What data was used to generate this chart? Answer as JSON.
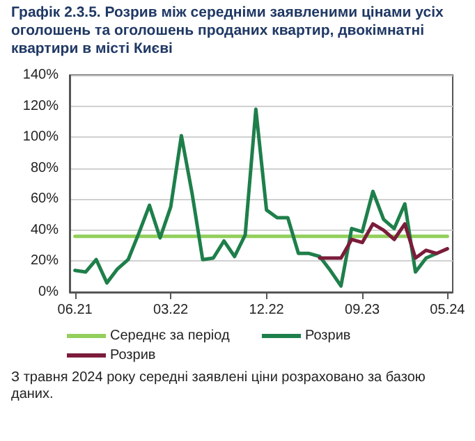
{
  "chart_data": {
    "type": "line",
    "title": "Графік 2.3.5. Розрив між середніми заявленими цінами усіх оголошень та оголошень проданих квартир, двокімнатні квартири в місті Києві",
    "categories": [
      "06.21",
      null,
      null,
      null,
      null,
      null,
      null,
      null,
      null,
      "03.22",
      null,
      null,
      null,
      null,
      null,
      null,
      null,
      null,
      "12.22",
      null,
      null,
      null,
      null,
      null,
      null,
      null,
      null,
      "09.23",
      null,
      null,
      null,
      null,
      null,
      null,
      null,
      "05.24"
    ],
    "series": [
      {
        "name": "Середнє за період",
        "color": "#92cf5c",
        "values": [
          36,
          36,
          36,
          36,
          36,
          36,
          36,
          36,
          36,
          36,
          36,
          36,
          36,
          36,
          36,
          36,
          36,
          36,
          36,
          36,
          36,
          36,
          36,
          36,
          36,
          36,
          36,
          36,
          36,
          36,
          36,
          36,
          36,
          36,
          36,
          36
        ]
      },
      {
        "name": "Розрив",
        "color": "#1e7f4a",
        "values": [
          14,
          13,
          21,
          6,
          15,
          21,
          38,
          56,
          35,
          55,
          101,
          64,
          21,
          22,
          33,
          23,
          37,
          118,
          53,
          48,
          48,
          25,
          25,
          23,
          14,
          4,
          41,
          39,
          65,
          47,
          41,
          57,
          13,
          22,
          25,
          null
        ]
      },
      {
        "name": "Розрив",
        "color": "#7b1c3a",
        "values": [
          null,
          null,
          null,
          null,
          null,
          null,
          null,
          null,
          null,
          null,
          null,
          null,
          null,
          null,
          null,
          null,
          null,
          null,
          null,
          null,
          null,
          null,
          null,
          22,
          22,
          22,
          34,
          32,
          44,
          40,
          34,
          44,
          22,
          27,
          25,
          28
        ]
      }
    ],
    "ylim": [
      0,
      140
    ],
    "yticks": [
      {
        "value": 0,
        "label": "0%"
      },
      {
        "value": 20,
        "label": "20%"
      },
      {
        "value": 40,
        "label": "40%"
      },
      {
        "value": 60,
        "label": "60%"
      },
      {
        "value": 80,
        "label": "80%"
      },
      {
        "value": 100,
        "label": "100%"
      },
      {
        "value": 120,
        "label": "120%"
      },
      {
        "value": 140,
        "label": "140%"
      }
    ],
    "grid": "y",
    "legend": "bottom",
    "marker": "none",
    "line_style": "solid",
    "annotations": [
      "З травня 2024 року середні заявлені ціни розраховано за базою даних."
    ]
  }
}
